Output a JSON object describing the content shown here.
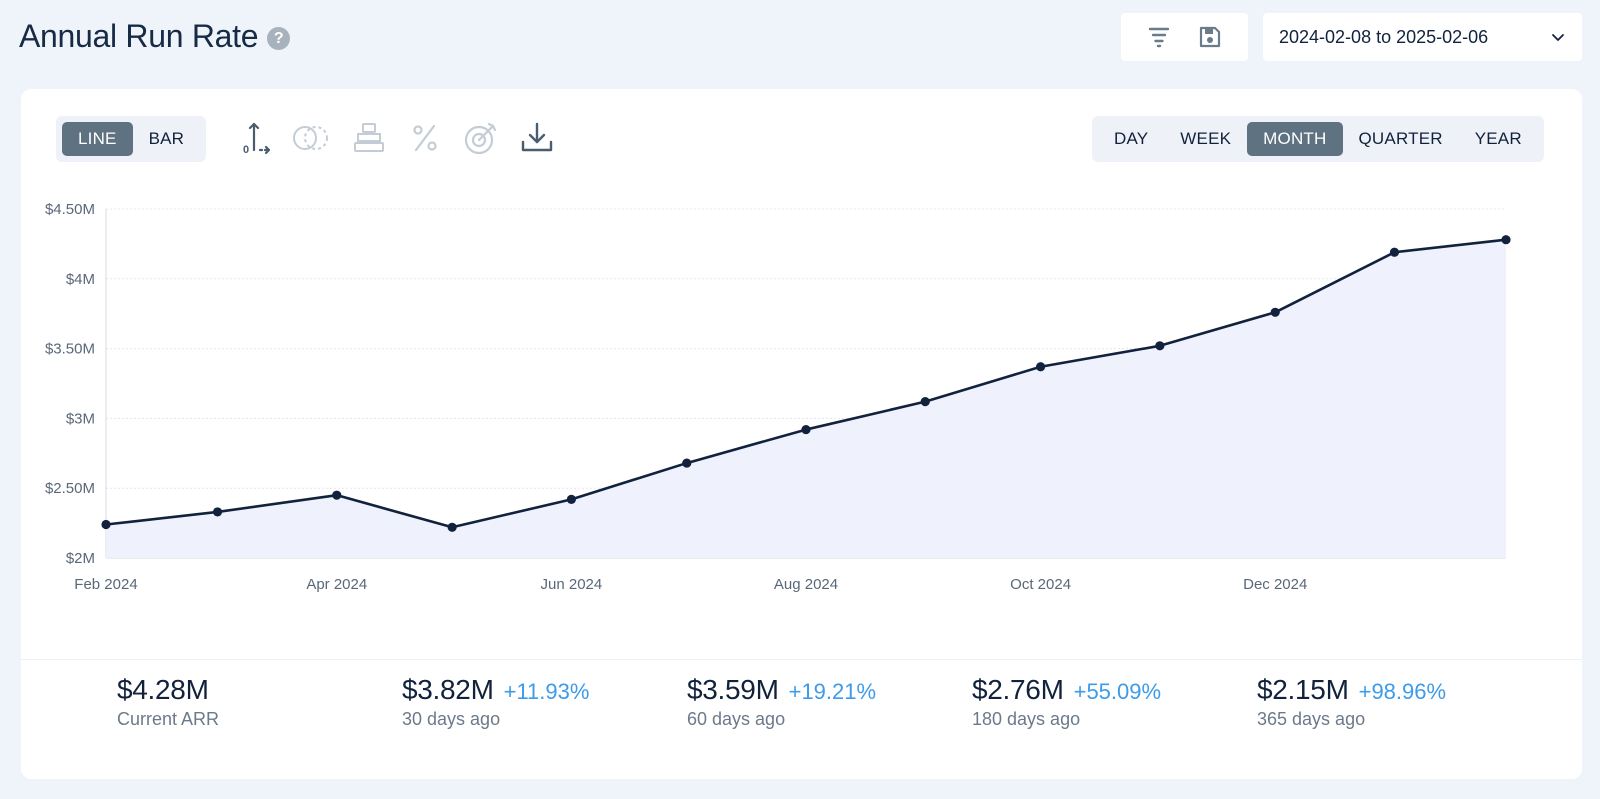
{
  "header": {
    "title": "Annual Run Rate",
    "help_icon": "question-circle-icon",
    "filter_icon": "filter-lines-icon",
    "save_icon": "floppy-save-icon",
    "date_range": "2024-02-08 to 2025-02-06"
  },
  "chart_type_toggle": {
    "options": [
      "LINE",
      "BAR"
    ],
    "selected": "LINE"
  },
  "toolbar_icons": [
    "y-axis-zero-icon",
    "overlap-circles-icon",
    "stack-icon",
    "percent-icon",
    "target-icon",
    "download-icon"
  ],
  "period_toggle": {
    "options": [
      "DAY",
      "WEEK",
      "MONTH",
      "QUARTER",
      "YEAR"
    ],
    "selected": "MONTH"
  },
  "colors": {
    "line": "#12223d",
    "area_fill": "#eef1fd",
    "active_toggle": "#5f7282",
    "change_positive": "#3d9be9"
  },
  "chart_data": {
    "type": "area",
    "x": [
      "2024-02-08",
      "2024-03-08",
      "2024-04-08",
      "2024-05-08",
      "2024-06-08",
      "2024-07-08",
      "2024-08-08",
      "2024-09-08",
      "2024-10-08",
      "2024-11-08",
      "2024-12-08",
      "2025-01-08",
      "2025-02-06"
    ],
    "series": [
      {
        "values": [
          2.24,
          2.33,
          2.45,
          2.22,
          2.42,
          2.68,
          2.92,
          3.12,
          3.37,
          3.52,
          3.76,
          4.19,
          4.28
        ]
      }
    ],
    "y_unit": "$M",
    "ylim": [
      2,
      4.5
    ],
    "y_ticks": [
      "$2M",
      "$2.50M",
      "$3M",
      "$3.50M",
      "$4M",
      "$4.50M"
    ],
    "x_ticks": [
      "Feb 2024",
      "Apr 2024",
      "Jun 2024",
      "Aug 2024",
      "Oct 2024",
      "Dec 2024"
    ],
    "grid": true,
    "markers": true
  },
  "stats": [
    {
      "value": "$4.28M",
      "change": "",
      "label": "Current ARR"
    },
    {
      "value": "$3.82M",
      "change": "+11.93%",
      "label": "30 days ago"
    },
    {
      "value": "$3.59M",
      "change": "+19.21%",
      "label": "60 days ago"
    },
    {
      "value": "$2.76M",
      "change": "+55.09%",
      "label": "180 days ago"
    },
    {
      "value": "$2.15M",
      "change": "+98.96%",
      "label": "365 days ago"
    }
  ]
}
